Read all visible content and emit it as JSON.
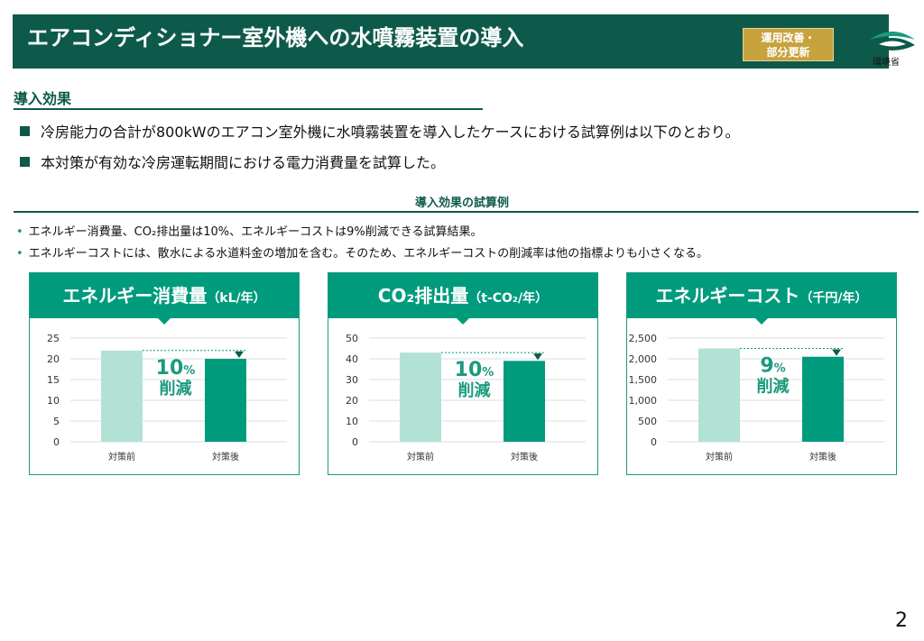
{
  "header": {
    "title": "エアコンディショナー室外機への水噴霧装置の導入",
    "tag_line1": "運用改善・",
    "tag_line2": "部分更新",
    "logo_text": "環境省"
  },
  "section": {
    "title": "導入効果",
    "bullets": [
      "冷房能力の合計が800kWのエアコン室外機に水噴霧装置を導入したケースにおける試算例は以下のとおり。",
      "本対策が有効な冷房運転期間における電力消費量を試算した。"
    ]
  },
  "subsection": {
    "title": "導入効果の試算例",
    "notes": [
      "エネルギー消費量、CO₂排出量は10%、エネルギーコストは9%削減できる試算結果。",
      "エネルギーコストには、散水による水道料金の増加を含む。そのため、エネルギーコストの削減率は他の指標よりも小さくなる。"
    ]
  },
  "colors": {
    "primary": "#009b7d",
    "dark": "#0e5a4a",
    "before": "#b2e1d6",
    "after": "#009b7d",
    "accent": "#c7a23d"
  },
  "chart_data": [
    {
      "type": "bar",
      "title": "エネルギー消費量",
      "unit": "（kL/年）",
      "categories": [
        "対策前",
        "対策後"
      ],
      "values": [
        22,
        20
      ],
      "ylim": [
        0,
        25
      ],
      "ticks": [
        "0",
        "5",
        "10",
        "15",
        "20",
        "25"
      ],
      "tick_values": [
        0,
        5,
        10,
        15,
        20,
        25
      ],
      "reduction_value": "10",
      "reduction_pct": "%",
      "reduction_word": "削減",
      "grid": true
    },
    {
      "type": "bar",
      "title": "CO₂排出量",
      "unit": "（t-CO₂/年）",
      "categories": [
        "対策前",
        "対策後"
      ],
      "values": [
        43,
        39
      ],
      "ylim": [
        0,
        50
      ],
      "ticks": [
        "0",
        "10",
        "20",
        "30",
        "40",
        "50"
      ],
      "tick_values": [
        0,
        10,
        20,
        30,
        40,
        50
      ],
      "reduction_value": "10",
      "reduction_pct": "%",
      "reduction_word": "削減",
      "grid": true
    },
    {
      "type": "bar",
      "title": "エネルギーコスト",
      "unit": "（千円/年）",
      "categories": [
        "対策前",
        "対策後"
      ],
      "values": [
        2250,
        2050
      ],
      "ylim": [
        0,
        2500
      ],
      "ticks": [
        "0",
        "500",
        "1,000",
        "1,500",
        "2,000",
        "2,500"
      ],
      "tick_values": [
        0,
        500,
        1000,
        1500,
        2000,
        2500
      ],
      "reduction_value": "9",
      "reduction_pct": "%",
      "reduction_word": "削減",
      "grid": true
    }
  ],
  "page_number": "2"
}
